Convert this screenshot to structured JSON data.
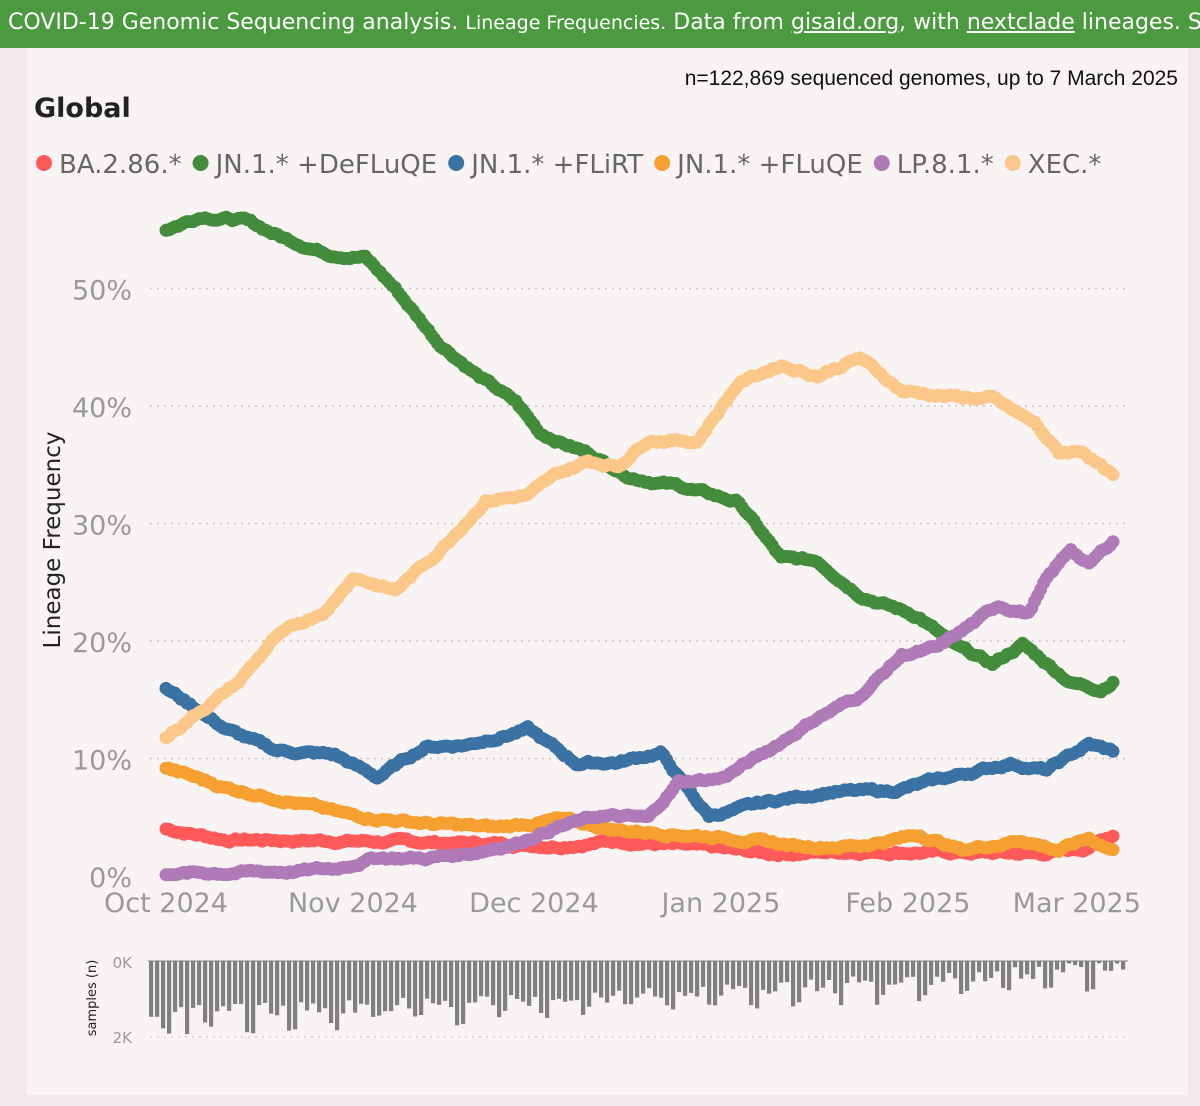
{
  "header": {
    "part1": "COVID-19 Genomic Sequencing analysis.",
    "part2": "Lineage Frequencies.",
    "part3": "Data from",
    "link1": "gisaid.org",
    "part4": ", with",
    "link2": "nextclade",
    "part5": "lineages. Source"
  },
  "chart_data": {
    "type": "line",
    "title": "Global",
    "subtitle": "n=122,869 sequenced genomes, up to 7 March 2025",
    "ylabel": "Lineage Frequency",
    "ylim": [
      0,
      56
    ],
    "yticks": [
      0,
      10,
      20,
      30,
      40,
      50
    ],
    "ytick_labels": [
      "0%",
      "10%",
      "20%",
      "30%",
      "40%",
      "50%"
    ],
    "x_start_day": 0,
    "x_end_day": 157,
    "xtick_days": [
      0,
      31,
      61,
      92,
      123,
      151
    ],
    "xtick_labels": [
      "Oct 2024",
      "Nov 2024",
      "Dec 2024",
      "Jan 2025",
      "Feb 2025",
      "Mar 2025"
    ],
    "series_start_day": 0,
    "series_end_day": 157,
    "series": [
      {
        "name": "BA.2.86.*",
        "color": "#ff5a5a",
        "knots": [
          [
            0,
            4
          ],
          [
            10,
            3.1
          ],
          [
            30,
            3
          ],
          [
            50,
            2.8
          ],
          [
            65,
            2.6
          ],
          [
            75,
            3
          ],
          [
            90,
            2.4
          ],
          [
            100,
            1.9
          ],
          [
            115,
            2.1
          ],
          [
            130,
            2
          ],
          [
            145,
            1.9
          ],
          [
            152,
            2.3
          ],
          [
            157,
            3.5
          ]
        ]
      },
      {
        "name": "JN.1.* +DeFLuQE",
        "color": "#438c3c",
        "knots": [
          [
            0,
            55
          ],
          [
            6,
            56.2
          ],
          [
            13,
            55.8
          ],
          [
            20,
            54.2
          ],
          [
            27,
            53
          ],
          [
            33,
            52.7
          ],
          [
            38,
            50
          ],
          [
            45,
            45.5
          ],
          [
            52,
            42.5
          ],
          [
            58,
            40.3
          ],
          [
            62,
            37.7
          ],
          [
            70,
            36
          ],
          [
            77,
            34
          ],
          [
            85,
            33.2
          ],
          [
            95,
            31.8
          ],
          [
            102,
            27
          ],
          [
            108,
            26.8
          ],
          [
            115,
            24
          ],
          [
            125,
            22
          ],
          [
            131,
            19.5
          ],
          [
            137,
            18
          ],
          [
            142,
            19.7
          ],
          [
            150,
            16.5
          ],
          [
            155,
            15.9
          ],
          [
            157,
            16.6
          ]
        ]
      },
      {
        "name": "JN.1.* +FLiRT",
        "color": "#3a72a3",
        "knots": [
          [
            0,
            16
          ],
          [
            10,
            12.5
          ],
          [
            18,
            10.7
          ],
          [
            28,
            10.3
          ],
          [
            35,
            8.4
          ],
          [
            43,
            11
          ],
          [
            50,
            11.2
          ],
          [
            60,
            12.5
          ],
          [
            68,
            9.6
          ],
          [
            75,
            9.7
          ],
          [
            82,
            10.5
          ],
          [
            87,
            7
          ],
          [
            90,
            5.1
          ],
          [
            100,
            6.3
          ],
          [
            110,
            7.2
          ],
          [
            120,
            7.2
          ],
          [
            130,
            8.4
          ],
          [
            140,
            9.6
          ],
          [
            146,
            9
          ],
          [
            153,
            11.2
          ],
          [
            157,
            10.6
          ]
        ]
      },
      {
        "name": "JN.1.* +FLuQE",
        "color": "#f5a030",
        "knots": [
          [
            0,
            9.2
          ],
          [
            10,
            7.5
          ],
          [
            20,
            6.5
          ],
          [
            30,
            5.2
          ],
          [
            45,
            4.4
          ],
          [
            55,
            4.1
          ],
          [
            65,
            4.8
          ],
          [
            75,
            3.9
          ],
          [
            85,
            3.6
          ],
          [
            95,
            3.2
          ],
          [
            105,
            2.5
          ],
          [
            115,
            2.6
          ],
          [
            125,
            3.5
          ],
          [
            132,
            2.2
          ],
          [
            142,
            3.1
          ],
          [
            148,
            2.2
          ],
          [
            153,
            3.2
          ],
          [
            157,
            2.2
          ]
        ]
      },
      {
        "name": "LP.8.1.*",
        "color": "#b07ab9",
        "knots": [
          [
            0,
            0.2
          ],
          [
            20,
            0.4
          ],
          [
            28,
            0.6
          ],
          [
            35,
            1.6
          ],
          [
            43,
            1.5
          ],
          [
            50,
            1.9
          ],
          [
            58,
            2.8
          ],
          [
            65,
            4.2
          ],
          [
            72,
            5.1
          ],
          [
            80,
            4.9
          ],
          [
            85,
            8
          ],
          [
            92,
            8.3
          ],
          [
            100,
            10.7
          ],
          [
            108,
            13.5
          ],
          [
            115,
            15.3
          ],
          [
            122,
            18.8
          ],
          [
            128,
            19.4
          ],
          [
            133,
            21.2
          ],
          [
            138,
            23
          ],
          [
            143,
            22.4
          ],
          [
            146,
            25.2
          ],
          [
            150,
            27.8
          ],
          [
            153,
            26.5
          ],
          [
            157,
            28.5
          ]
        ]
      },
      {
        "name": "XEC.*",
        "color": "#fcc88a",
        "knots": [
          [
            0,
            11.8
          ],
          [
            5,
            13.8
          ],
          [
            12,
            16.5
          ],
          [
            18,
            20.2
          ],
          [
            27,
            22.8
          ],
          [
            31,
            25.5
          ],
          [
            38,
            24.3
          ],
          [
            45,
            27.5
          ],
          [
            53,
            32
          ],
          [
            60,
            32.4
          ],
          [
            65,
            34.2
          ],
          [
            70,
            35.3
          ],
          [
            75,
            34.9
          ],
          [
            80,
            37.2
          ],
          [
            88,
            37
          ],
          [
            95,
            42
          ],
          [
            102,
            43.5
          ],
          [
            108,
            42.6
          ],
          [
            115,
            44.1
          ],
          [
            122,
            41.3
          ],
          [
            130,
            40.8
          ],
          [
            137,
            40.6
          ],
          [
            144,
            38.5
          ],
          [
            148,
            36
          ],
          [
            152,
            36.2
          ],
          [
            157,
            34
          ]
        ]
      }
    ],
    "samples_panel": {
      "ylabel": "samples (n)",
      "ytick_labels": [
        "0K",
        "2K"
      ],
      "ylim": [
        0,
        2000
      ]
    }
  }
}
